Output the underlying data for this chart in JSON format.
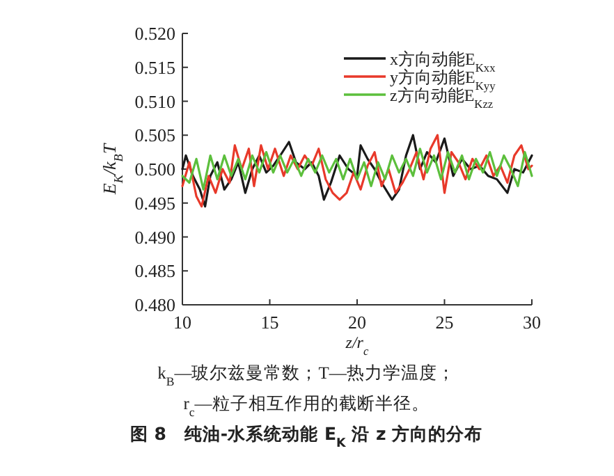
{
  "chart_data": {
    "type": "line",
    "xlabel": "z/r$_{c}$",
    "ylabel": "E$_{K}$/k$_{B}$T",
    "xlim": [
      10,
      30
    ],
    "xticks": [
      10,
      15,
      20,
      25,
      30
    ],
    "ylim": [
      0.48,
      0.52
    ],
    "yticks": [
      {
        "value": 0.48,
        "label": "0.480"
      },
      {
        "value": 0.485,
        "label": "0.485"
      },
      {
        "value": 0.49,
        "label": "0.490"
      },
      {
        "value": 0.495,
        "label": "0.495"
      },
      {
        "value": 0.5,
        "label": "0.500"
      },
      {
        "value": 0.505,
        "label": "0.505"
      },
      {
        "value": 0.51,
        "label": "0.510"
      },
      {
        "value": 0.515,
        "label": "0.515"
      },
      {
        "value": 0.52,
        "label": "0.520"
      }
    ],
    "legend": "top right",
    "grid": false,
    "line_style": "solid",
    "series": [
      {
        "name": "x方向动能E$_{Kxx}$",
        "color": "#1a1a1a",
        "x": [
          10,
          10.2,
          10.6,
          11,
          11.3,
          11.6,
          12,
          12.4,
          12.8,
          13.2,
          13.6,
          14,
          14.4,
          14.8,
          15.2,
          15.6,
          16.1,
          16.5,
          17,
          17.4,
          17.8,
          18.1,
          18.5,
          19,
          19.5,
          20,
          20.2,
          20.6,
          21,
          21.4,
          22,
          22.4,
          22.8,
          23.2,
          23.6,
          24,
          24.5,
          25,
          25.5,
          26,
          26.5,
          27,
          27.5,
          28,
          28.6,
          29,
          29.5,
          30
        ],
        "values": [
          0.5,
          0.502,
          0.499,
          0.497,
          0.4945,
          0.499,
          0.501,
          0.497,
          0.4985,
          0.501,
          0.4965,
          0.5,
          0.502,
          0.4995,
          0.5005,
          0.502,
          0.504,
          0.501,
          0.5,
          0.501,
          0.499,
          0.4955,
          0.498,
          0.502,
          0.5,
          0.499,
          0.5035,
          0.5015,
          0.5,
          0.498,
          0.4955,
          0.497,
          0.502,
          0.505,
          0.5,
          0.5025,
          0.501,
          0.5045,
          0.499,
          0.5015,
          0.5,
          0.5005,
          0.499,
          0.4985,
          0.4965,
          0.5,
          0.4995,
          0.502
        ]
      },
      {
        "name": "y方向动能E$_{Kyy}$",
        "color": "#e8392a",
        "x": [
          10,
          10.4,
          10.8,
          11.1,
          11.5,
          11.9,
          12.3,
          12.7,
          13,
          13.4,
          13.8,
          14.1,
          14.5,
          14.9,
          15.3,
          15.8,
          16.2,
          16.6,
          17,
          17.4,
          17.8,
          18.2,
          18.6,
          19,
          19.4,
          19.8,
          20.2,
          20.6,
          21,
          21.4,
          21.8,
          22.2,
          22.6,
          23,
          23.4,
          23.8,
          24.2,
          24.6,
          25,
          25.4,
          25.8,
          26.2,
          26.6,
          27,
          27.4,
          27.8,
          28.2,
          28.6,
          29,
          29.4,
          29.8,
          30
        ],
        "values": [
          0.4975,
          0.501,
          0.496,
          0.4945,
          0.499,
          0.4965,
          0.5,
          0.498,
          0.5035,
          0.5,
          0.503,
          0.4975,
          0.5035,
          0.5,
          0.503,
          0.499,
          0.502,
          0.5,
          0.502,
          0.5005,
          0.503,
          0.4985,
          0.4965,
          0.4955,
          0.4965,
          0.4995,
          0.497,
          0.5005,
          0.5025,
          0.4975,
          0.5,
          0.4965,
          0.498,
          0.5,
          0.5025,
          0.4985,
          0.503,
          0.505,
          0.4965,
          0.5025,
          0.501,
          0.4985,
          0.5015,
          0.5,
          0.502,
          0.499,
          0.5005,
          0.498,
          0.502,
          0.5035,
          0.5,
          0.5005
        ]
      },
      {
        "name": "z方向动能E$_{Kzz}$",
        "color": "#5cbf3c",
        "x": [
          10,
          10.4,
          10.8,
          11.2,
          11.6,
          12,
          12.4,
          12.8,
          13.2,
          13.6,
          14,
          14.4,
          14.8,
          15.2,
          15.6,
          16,
          16.4,
          16.8,
          17.2,
          17.6,
          18,
          18.4,
          18.8,
          19.2,
          19.6,
          20,
          20.4,
          20.8,
          21.2,
          21.6,
          22,
          22.4,
          22.8,
          23.2,
          23.6,
          24,
          24.4,
          24.8,
          25.2,
          25.6,
          26,
          26.4,
          26.8,
          27.2,
          27.6,
          28,
          28.4,
          28.8,
          29.2,
          29.6,
          30
        ],
        "values": [
          0.499,
          0.498,
          0.5015,
          0.497,
          0.502,
          0.4985,
          0.502,
          0.499,
          0.5015,
          0.4985,
          0.502,
          0.4995,
          0.5025,
          0.4995,
          0.502,
          0.4995,
          0.5015,
          0.499,
          0.5015,
          0.4995,
          0.502,
          0.4995,
          0.5015,
          0.4985,
          0.5015,
          0.4985,
          0.501,
          0.4975,
          0.501,
          0.4985,
          0.502,
          0.4995,
          0.5015,
          0.499,
          0.503,
          0.4995,
          0.502,
          0.4985,
          0.5025,
          0.4995,
          0.502,
          0.4985,
          0.5015,
          0.4995,
          0.5025,
          0.499,
          0.502,
          0.5,
          0.4975,
          0.5025,
          0.499
        ]
      }
    ],
    "annotations": [
      "k$_{B}$—玻尔兹曼常数；T—热力学温度；",
      "r$_{c}$—粒子相互作用的截断半径。",
      "图 8　纯油-水系统动能 E$_{K}$ 沿 z 方向的分布"
    ]
  }
}
